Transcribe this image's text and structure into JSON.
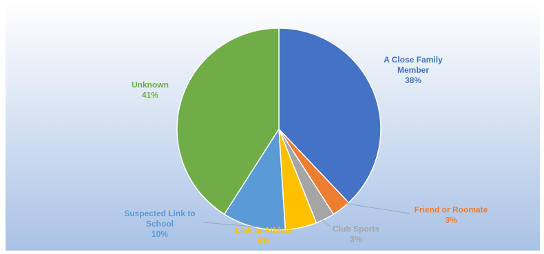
{
  "chart_data": {
    "type": "pie",
    "title": "",
    "start_angle_deg": 0,
    "direction": "clockwise",
    "slices": [
      {
        "label_lines": [
          "A Close Family",
          "Member"
        ],
        "percent_label": "38%",
        "value": 38,
        "color": "#4472C4",
        "label_color": "#4472C4"
      },
      {
        "label_lines": [
          "Friend or Roomate"
        ],
        "percent_label": "3%",
        "value": 3,
        "color": "#ED7D31",
        "label_color": "#ED7D31"
      },
      {
        "label_lines": [
          "Club Sports"
        ],
        "percent_label": "3%",
        "value": 3,
        "color": "#A5A5A5",
        "label_color": "#A5A5A5"
      },
      {
        "label_lines": [
          "Link to Athlete"
        ],
        "percent_label": "5%",
        "value": 5,
        "color": "#FFC000",
        "label_color": "#FFC000"
      },
      {
        "label_lines": [
          "Suspected Link to",
          "School"
        ],
        "percent_label": "10%",
        "value": 10,
        "color": "#5B9BD5",
        "label_color": "#5B9BD5"
      },
      {
        "label_lines": [
          "Unknown"
        ],
        "percent_label": "41%",
        "value": 41,
        "color": "#70AD47",
        "label_color": "#70AD47"
      }
    ],
    "background": {
      "top_color": "#ffffff",
      "bottom_color": "#a9c2e6"
    }
  }
}
